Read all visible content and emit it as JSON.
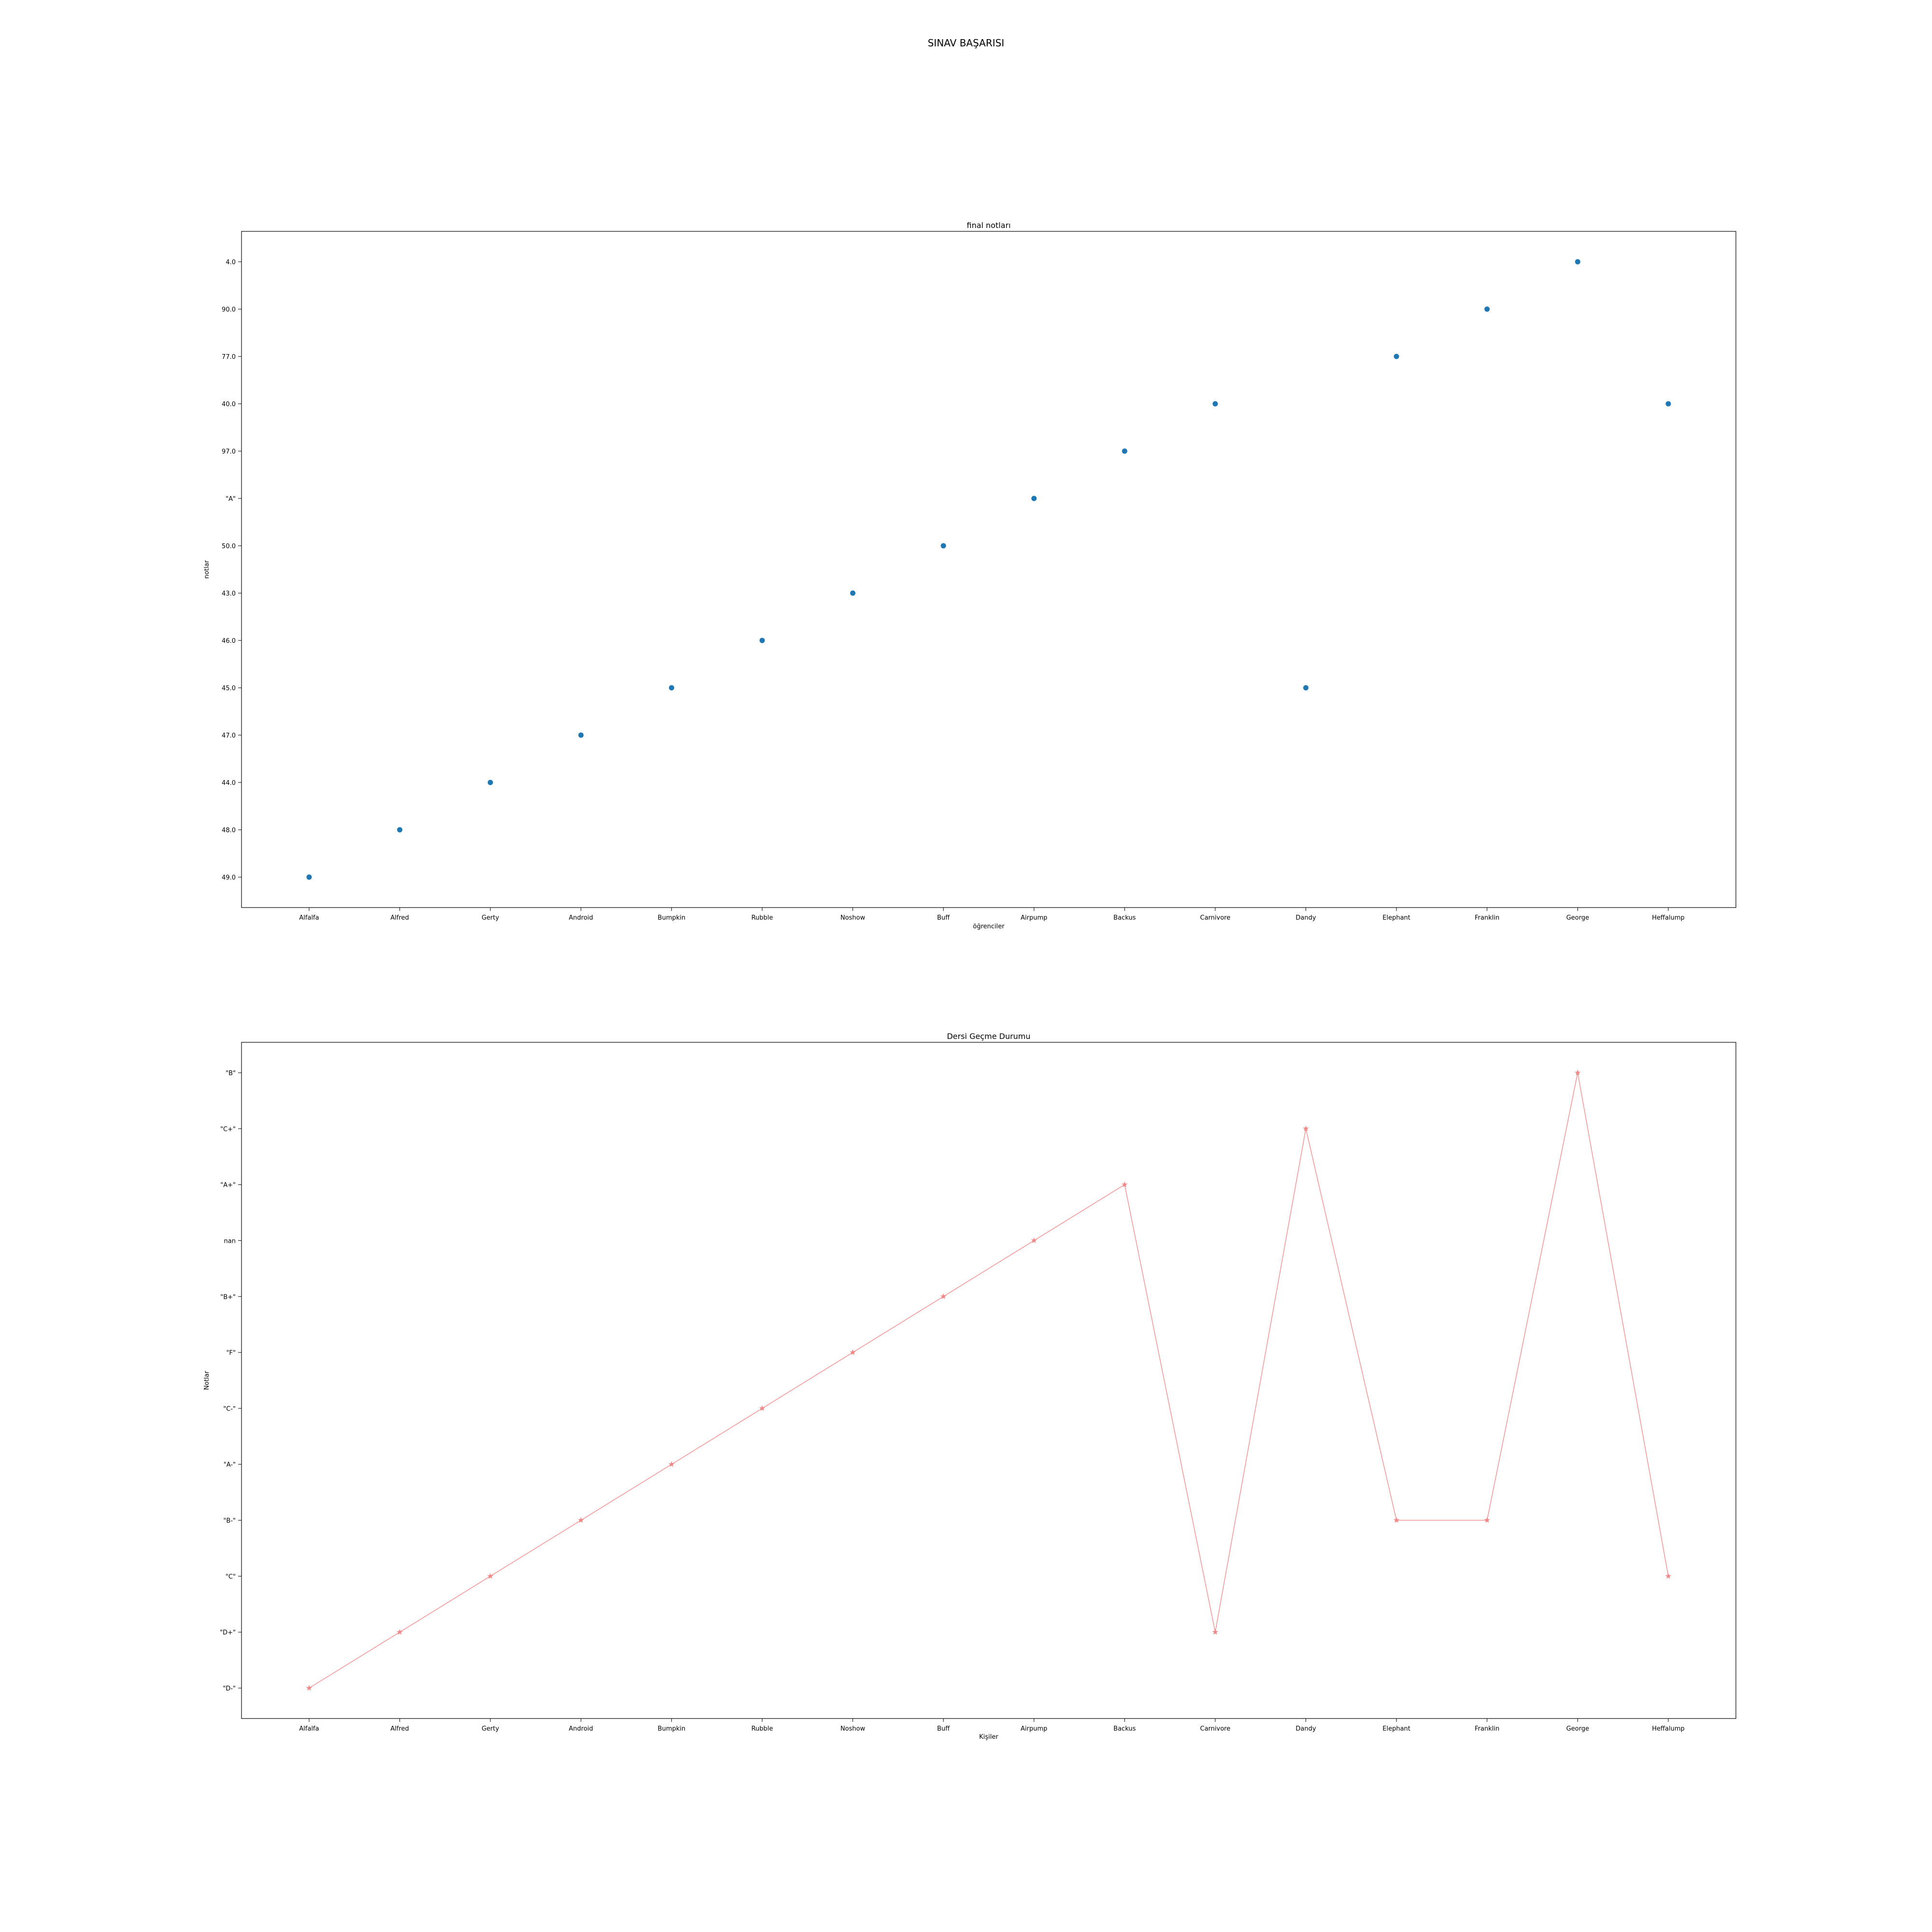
{
  "figure_title": "SINAV BAŞARISI",
  "chart_data": [
    {
      "type": "scatter",
      "title": "final notları",
      "xlabel": "öğrenciler",
      "ylabel": "notlar",
      "x": [
        "Alfalfa",
        "Alfred",
        "Gerty",
        "Android",
        "Bumpkin",
        "Rubble",
        "Noshow",
        "Buff",
        "Airpump",
        "Backus",
        "Carnivore",
        "Dandy",
        "Elephant",
        "Franklin",
        "George",
        "Heffalump"
      ],
      "y": [
        "49.0",
        "48.0",
        "44.0",
        "47.0",
        "45.0",
        "46.0",
        "43.0",
        "50.0",
        "\"A\"",
        "97.0",
        "40.0",
        "45.0",
        "77.0",
        "90.0",
        "4.0",
        "40.0"
      ],
      "yticks": [
        "49.0",
        "48.0",
        "44.0",
        "47.0",
        "45.0",
        "46.0",
        "43.0",
        "50.0",
        "\"A\"",
        "97.0",
        "40.0",
        "77.0",
        "90.0",
        "4.0"
      ],
      "color": "#1f77b4",
      "grid": false
    },
    {
      "type": "line",
      "title": "Dersi Geçme Durumu",
      "xlabel": "Kişiler",
      "ylabel": "Notlar",
      "x": [
        "Alfalfa",
        "Alfred",
        "Gerty",
        "Android",
        "Bumpkin",
        "Rubble",
        "Noshow",
        "Buff",
        "Airpump",
        "Backus",
        "Carnivore",
        "Dandy",
        "Elephant",
        "Franklin",
        "George",
        "Heffalump"
      ],
      "y": [
        "\"D-\"",
        "\"D+\"",
        "\"C\"",
        "\"B-\"",
        "\"A-\"",
        "\"C-\"",
        "\"F\"",
        "\"B+\"",
        "nan",
        "\"A+\"",
        "\"D+\"",
        "\"C+\"",
        "\"B-\"",
        "\"B-\"",
        "\"B\"",
        "\"C\""
      ],
      "yticks": [
        "\"D-\"",
        "\"D+\"",
        "\"C\"",
        "\"B-\"",
        "\"A-\"",
        "\"C-\"",
        "\"F\"",
        "\"B+\"",
        "nan",
        "\"A+\"",
        "\"C+\"",
        "\"B\""
      ],
      "color": "#f08080",
      "marker": "*",
      "grid": false
    }
  ]
}
